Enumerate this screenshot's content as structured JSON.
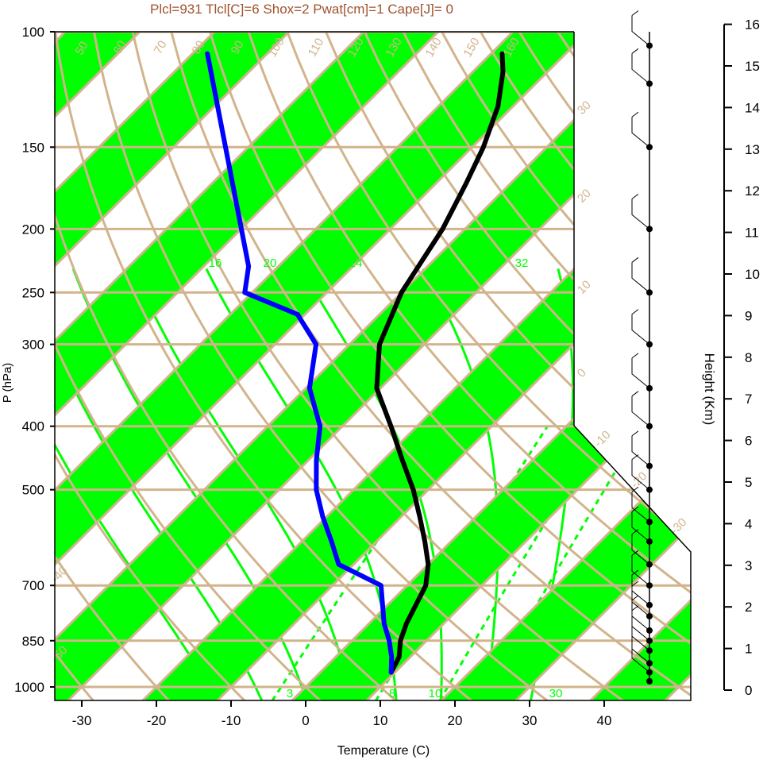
{
  "chart_data": {
    "type": "line",
    "title": "Plcl=931 Tlcl[C]=6 Shox=2 Pwat[cm]=1 Cape[J]= 0",
    "xlabel": "Temperature (C)",
    "ylabel": "P (hPa)",
    "right_axis_label": "Height (Km)",
    "x_range": [
      -33,
      36
    ],
    "y_range": [
      1050,
      100
    ],
    "y_scale": "log",
    "x_ticks": [
      -30,
      -20,
      -10,
      0,
      10,
      20,
      30,
      40
    ],
    "y_ticks": [
      100,
      150,
      200,
      250,
      300,
      400,
      500,
      700,
      850,
      1000
    ],
    "y_tick_labels": [
      "100",
      "150",
      "200",
      "250",
      "300",
      "400",
      "500",
      "700",
      "850",
      "1000"
    ],
    "height_ticks": [
      0,
      1,
      2,
      3,
      4,
      5,
      6,
      7,
      8,
      9,
      10,
      11,
      12,
      13,
      14,
      15,
      16
    ],
    "colors": {
      "title": "#a0522d",
      "band": "#00ff00",
      "isotherm_grid": "#d2b48c",
      "temperature": "#000000",
      "dewpoint": "#0000ff",
      "mixing_ratio": "#00ff00"
    },
    "isotherm_band_labels": [
      "30",
      "20",
      "10",
      "0",
      "-10",
      "-20",
      "-30",
      "-40",
      "-50"
    ],
    "dry_adiabat_labels": [
      "50",
      "60",
      "70",
      "80",
      "90",
      "100",
      "110",
      "120",
      "130",
      "140",
      "150",
      "160"
    ],
    "moist_adiabat_labels": [
      "12",
      "16",
      "20",
      "24",
      "32"
    ],
    "mixing_ratio_labels": [
      "3",
      "8",
      "10",
      "20",
      "30"
    ],
    "series": [
      {
        "name": "Temperature",
        "points": [
          {
            "p": 950,
            "t": 9.5
          },
          {
            "p": 900,
            "t": 8.5
          },
          {
            "p": 850,
            "t": 6.5
          },
          {
            "p": 800,
            "t": 5
          },
          {
            "p": 700,
            "t": 2.5
          },
          {
            "p": 650,
            "t": 0
          },
          {
            "p": 600,
            "t": -3.5
          },
          {
            "p": 550,
            "t": -7.5
          },
          {
            "p": 500,
            "t": -12
          },
          {
            "p": 450,
            "t": -17.5
          },
          {
            "p": 400,
            "t": -23.5
          },
          {
            "p": 350,
            "t": -30.5
          },
          {
            "p": 300,
            "t": -36
          },
          {
            "p": 250,
            "t": -40
          },
          {
            "p": 200,
            "t": -43
          },
          {
            "p": 170,
            "t": -46
          },
          {
            "p": 150,
            "t": -48.5
          },
          {
            "p": 130,
            "t": -52
          },
          {
            "p": 115,
            "t": -56
          },
          {
            "p": 108,
            "t": -58.5
          }
        ]
      },
      {
        "name": "Dewpoint",
        "points": [
          {
            "p": 950,
            "t": 9.5
          },
          {
            "p": 900,
            "t": 7.5
          },
          {
            "p": 850,
            "t": 5
          },
          {
            "p": 800,
            "t": 2
          },
          {
            "p": 700,
            "t": -3.5
          },
          {
            "p": 650,
            "t": -12
          },
          {
            "p": 600,
            "t": -16
          },
          {
            "p": 550,
            "t": -20.5
          },
          {
            "p": 500,
            "t": -25
          },
          {
            "p": 450,
            "t": -29
          },
          {
            "p": 400,
            "t": -33
          },
          {
            "p": 350,
            "t": -39.5
          },
          {
            "p": 300,
            "t": -44.5
          },
          {
            "p": 270,
            "t": -51
          },
          {
            "p": 250,
            "t": -61
          },
          {
            "p": 228,
            "t": -64
          },
          {
            "p": 108,
            "t": -98
          }
        ]
      }
    ],
    "wind_profile": [
      {
        "p": 980,
        "km": 0.0,
        "barbs": 0
      },
      {
        "p": 950,
        "km": 0.3,
        "barbs": 1
      },
      {
        "p": 920,
        "km": 0.7,
        "barbs": 1
      },
      {
        "p": 880,
        "km": 1.0,
        "barbs": 1
      },
      {
        "p": 850,
        "km": 1.5,
        "barbs": 2
      },
      {
        "p": 820,
        "km": 1.8,
        "barbs": 2
      },
      {
        "p": 780,
        "km": 2.2,
        "barbs": 2
      },
      {
        "p": 750,
        "km": 2.6,
        "barbs": 2
      },
      {
        "p": 700,
        "km": 3.0,
        "barbs": 2
      },
      {
        "p": 650,
        "km": 3.6,
        "barbs": 2
      },
      {
        "p": 600,
        "km": 4.2,
        "barbs": 2
      },
      {
        "p": 560,
        "km": 4.8,
        "barbs": 2
      },
      {
        "p": 500,
        "km": 5.6,
        "barbs": 2
      },
      {
        "p": 460,
        "km": 6.2,
        "barbs": 2
      },
      {
        "p": 400,
        "km": 7.0,
        "barbs": 2
      },
      {
        "p": 350,
        "km": 7.9,
        "barbs": 2
      },
      {
        "p": 300,
        "km": 9.1,
        "barbs": 2
      },
      {
        "p": 250,
        "km": 10.4,
        "barbs": 2
      },
      {
        "p": 200,
        "km": 11.9,
        "barbs": 2
      },
      {
        "p": 150,
        "km": 13.7,
        "barbs": 2
      },
      {
        "p": 120,
        "km": 15.0,
        "barbs": 2
      },
      {
        "p": 105,
        "km": 16.0,
        "barbs": 2
      }
    ]
  }
}
